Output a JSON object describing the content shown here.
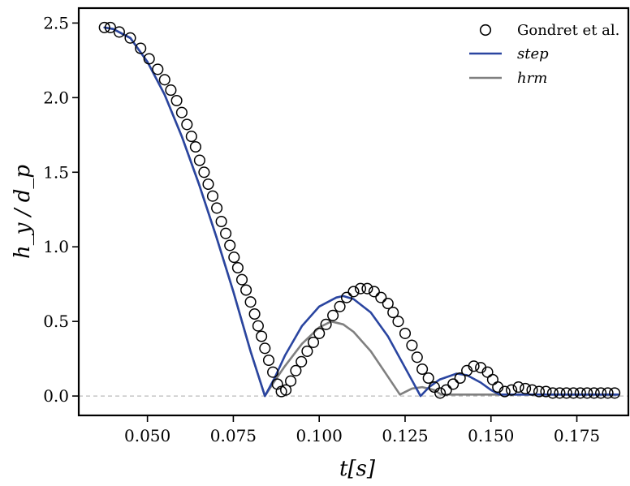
{
  "chart_data": {
    "type": "line",
    "xlabel": "t[s]",
    "ylabel": "h_y / d_p",
    "xlim": [
      0.03,
      0.19
    ],
    "ylim": [
      -0.13,
      2.6
    ],
    "xticks": [
      0.05,
      0.075,
      0.1,
      0.125,
      0.15,
      0.175
    ],
    "xtick_labels": [
      "0.050",
      "0.075",
      "0.100",
      "0.125",
      "0.150",
      "0.175"
    ],
    "yticks": [
      0.0,
      0.5,
      1.0,
      1.5,
      2.0,
      2.5
    ],
    "ytick_labels": [
      "0.0",
      "0.5",
      "1.0",
      "1.5",
      "2.0",
      "2.5"
    ],
    "reference_line": {
      "y": 0.0,
      "style": "dashed",
      "color": "#bbbbbb"
    },
    "grid": false,
    "legend_position": "top-right",
    "series": [
      {
        "name": "Gondret et al.",
        "kind": "scatter",
        "marker": "open-circle",
        "color": "#000000",
        "x": [
          0.0375,
          0.0392,
          0.0418,
          0.045,
          0.048,
          0.0505,
          0.053,
          0.055,
          0.0568,
          0.0585,
          0.06,
          0.0615,
          0.0628,
          0.064,
          0.0652,
          0.0665,
          0.0677,
          0.069,
          0.0702,
          0.0715,
          0.0728,
          0.074,
          0.0752,
          0.0763,
          0.0775,
          0.0787,
          0.08,
          0.0812,
          0.0822,
          0.0832,
          0.0842,
          0.0853,
          0.0865,
          0.0878,
          0.089,
          0.0903,
          0.0917,
          0.0932,
          0.0948,
          0.0965,
          0.0983,
          0.1,
          0.102,
          0.104,
          0.106,
          0.108,
          0.11,
          0.112,
          0.114,
          0.116,
          0.118,
          0.12,
          0.1215,
          0.123,
          0.125,
          0.127,
          0.1285,
          0.13,
          0.1318,
          0.1335,
          0.1352,
          0.137,
          0.139,
          0.141,
          0.143,
          0.145,
          0.147,
          0.149,
          0.1505,
          0.152,
          0.154,
          0.156,
          0.158,
          0.16,
          0.162,
          0.164,
          0.166,
          0.168,
          0.17,
          0.172,
          0.174,
          0.176,
          0.178,
          0.18,
          0.182,
          0.184,
          0.186
        ],
        "y": [
          2.47,
          2.47,
          2.44,
          2.4,
          2.33,
          2.26,
          2.19,
          2.12,
          2.05,
          1.98,
          1.9,
          1.82,
          1.74,
          1.67,
          1.58,
          1.5,
          1.42,
          1.34,
          1.26,
          1.17,
          1.09,
          1.01,
          0.93,
          0.86,
          0.78,
          0.71,
          0.63,
          0.55,
          0.47,
          0.4,
          0.32,
          0.24,
          0.16,
          0.08,
          0.03,
          0.04,
          0.1,
          0.17,
          0.23,
          0.3,
          0.36,
          0.42,
          0.48,
          0.54,
          0.6,
          0.66,
          0.7,
          0.72,
          0.72,
          0.7,
          0.66,
          0.62,
          0.56,
          0.5,
          0.42,
          0.34,
          0.26,
          0.18,
          0.12,
          0.06,
          0.02,
          0.04,
          0.08,
          0.12,
          0.17,
          0.2,
          0.19,
          0.16,
          0.11,
          0.06,
          0.03,
          0.04,
          0.06,
          0.05,
          0.04,
          0.03,
          0.03,
          0.02,
          0.02,
          0.02,
          0.02,
          0.02,
          0.02,
          0.02,
          0.02,
          0.02,
          0.02
        ],
        "render_x_scale": 0.1004,
        "render_y_scale": 0.1004
      },
      {
        "name": "step",
        "kind": "line",
        "color": "#2a45a0",
        "x": [
          0.0375,
          0.04,
          0.045,
          0.05,
          0.055,
          0.06,
          0.065,
          0.07,
          0.075,
          0.08,
          0.0842,
          0.087,
          0.09,
          0.095,
          0.1,
          0.105,
          0.107,
          0.11,
          0.115,
          0.12,
          0.125,
          0.1295,
          0.132,
          0.135,
          0.14,
          0.143,
          0.147,
          0.15,
          0.1525,
          0.16,
          0.17,
          0.18,
          0.187
        ],
        "y": [
          2.47,
          2.46,
          2.4,
          2.24,
          2.02,
          1.74,
          1.42,
          1.07,
          0.7,
          0.3,
          0.0,
          0.12,
          0.27,
          0.47,
          0.6,
          0.66,
          0.67,
          0.65,
          0.56,
          0.4,
          0.19,
          0.0,
          0.06,
          0.11,
          0.15,
          0.14,
          0.09,
          0.04,
          0.01,
          0.01,
          0.01,
          0.01,
          0.01
        ],
        "render_x_scale": 0.1004,
        "render_y_scale": 0.1004
      },
      {
        "name": "hrm",
        "kind": "line",
        "color": "#808080",
        "x": [
          0.0375,
          0.04,
          0.045,
          0.05,
          0.055,
          0.06,
          0.065,
          0.07,
          0.075,
          0.08,
          0.0842,
          0.087,
          0.09,
          0.095,
          0.1,
          0.1035,
          0.107,
          0.11,
          0.115,
          0.12,
          0.1235,
          0.127,
          0.13,
          0.1335,
          0.1355,
          0.145,
          0.16,
          0.17,
          0.18,
          0.187
        ],
        "y": [
          2.47,
          2.46,
          2.4,
          2.24,
          2.02,
          1.74,
          1.42,
          1.07,
          0.7,
          0.3,
          0.0,
          0.1,
          0.2,
          0.35,
          0.46,
          0.5,
          0.48,
          0.43,
          0.3,
          0.13,
          0.01,
          0.05,
          0.06,
          0.04,
          0.01,
          0.01,
          0.01,
          0.01,
          0.01,
          0.01
        ],
        "render_x_scale": 0.1004,
        "render_y_scale": 0.1004
      }
    ]
  }
}
